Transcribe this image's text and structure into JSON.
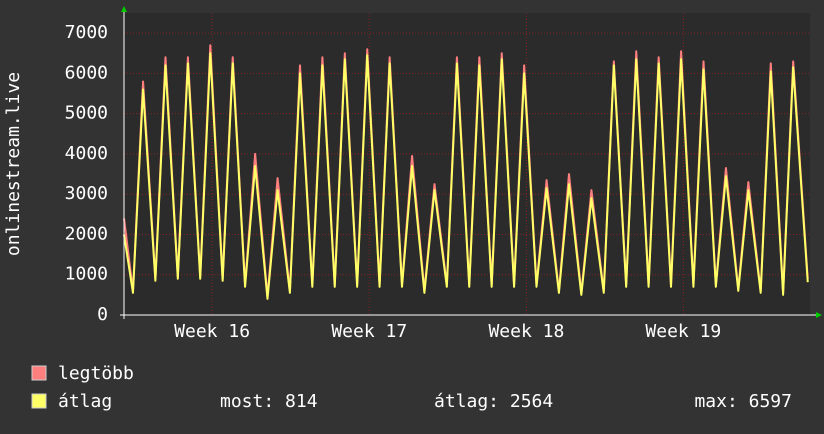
{
  "chart_data": {
    "type": "line",
    "y_label": "onlinestream.live",
    "x": [
      0,
      0.4,
      0.85,
      1.4,
      1.85,
      2.4,
      2.85,
      3.4,
      3.85,
      4.4,
      4.85,
      5.4,
      5.85,
      6.4,
      6.85,
      7.4,
      7.85,
      8.4,
      8.85,
      9.4,
      9.85,
      10.4,
      10.85,
      11.4,
      11.85,
      12.4,
      12.85,
      13.4,
      13.85,
      14.4,
      14.85,
      15.4,
      15.85,
      16.4,
      16.85,
      17.4,
      17.85,
      18.4,
      18.85,
      19.4,
      19.85,
      20.4,
      20.85,
      21.4,
      21.85,
      22.4,
      22.85,
      23.4,
      23.85,
      24.4,
      24.85,
      25.4,
      25.85,
      26.4,
      26.85,
      27.4,
      27.85,
      28.4,
      28.85,
      29.4,
      29.85,
      30.5
    ],
    "series": [
      {
        "name": "legtöbb",
        "color": "#ff7f7f",
        "values": [
          2400,
          600,
          5800,
          900,
          6400,
          950,
          6400,
          950,
          6700,
          900,
          6400,
          750,
          4000,
          450,
          3400,
          600,
          6200,
          750,
          6400,
          750,
          6500,
          750,
          6600,
          750,
          6400,
          750,
          3950,
          600,
          3250,
          750,
          6400,
          750,
          6400,
          750,
          6500,
          750,
          6200,
          750,
          3350,
          600,
          3500,
          550,
          3100,
          600,
          6300,
          750,
          6550,
          750,
          6400,
          750,
          6550,
          750,
          6300,
          750,
          3650,
          650,
          3300,
          600,
          6250,
          550,
          6300,
          900
        ]
      },
      {
        "name": "átlag",
        "color": "#ffff66",
        "values": [
          2000,
          550,
          5600,
          850,
          6200,
          900,
          6250,
          900,
          6500,
          850,
          6250,
          700,
          3700,
          400,
          3100,
          550,
          6000,
          700,
          6200,
          700,
          6350,
          700,
          6450,
          700,
          6250,
          700,
          3700,
          550,
          3100,
          700,
          6250,
          700,
          6200,
          700,
          6350,
          700,
          6000,
          700,
          3150,
          550,
          3250,
          500,
          2900,
          550,
          6200,
          700,
          6350,
          700,
          6250,
          700,
          6350,
          700,
          6100,
          700,
          3450,
          600,
          3100,
          550,
          6050,
          500,
          6150,
          814
        ]
      }
    ],
    "xlim": [
      0,
      30.6
    ],
    "xticks": [
      {
        "value": 3.93,
        "label": "Week 16"
      },
      {
        "value": 10.94,
        "label": "Week 17"
      },
      {
        "value": 17.95,
        "label": "Week 18"
      },
      {
        "value": 24.95,
        "label": "Week 19"
      }
    ],
    "ylim": [
      0,
      7500
    ],
    "yticks": [
      0,
      1000,
      2000,
      3000,
      4000,
      5000,
      6000,
      7000
    ],
    "grid": true,
    "stats": [
      "most: 814",
      "átlag: 2564",
      "max: 6597"
    ]
  }
}
